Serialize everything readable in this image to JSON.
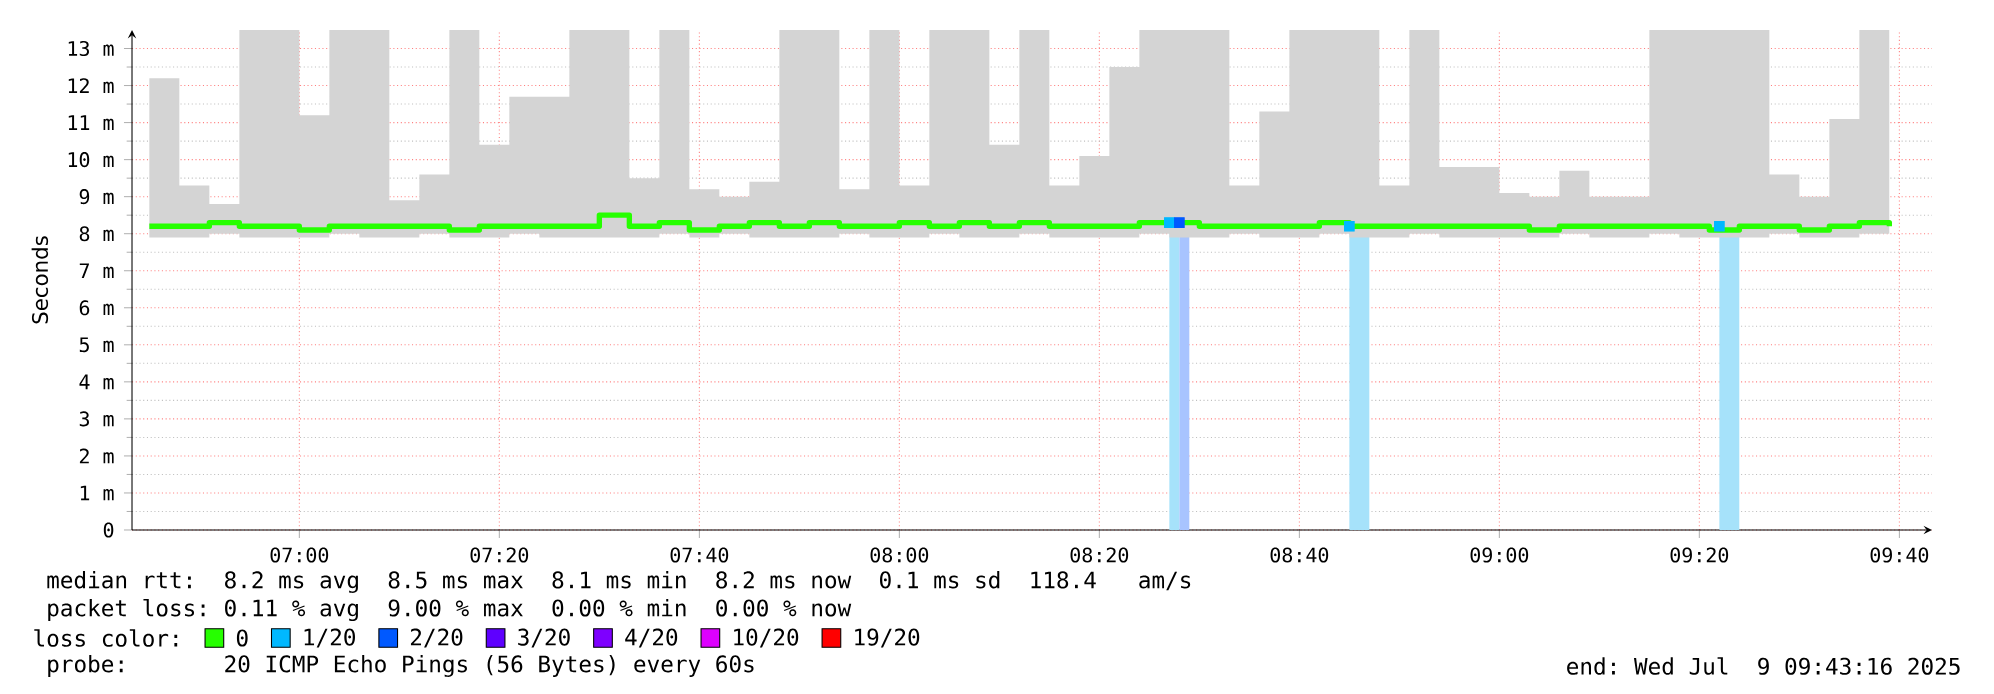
{
  "chart_data": {
    "type": "step",
    "ylabel": "Seconds",
    "xlim": [
      6.7211,
      9.7211
    ],
    "ylim": [
      0,
      13.5
    ],
    "xticks": [
      {
        "value": 7,
        "label": "07:00"
      },
      {
        "value": 7.3333,
        "label": "07:20"
      },
      {
        "value": 7.6667,
        "label": "07:40"
      },
      {
        "value": 8,
        "label": "08:00"
      },
      {
        "value": 8.3333,
        "label": "08:20"
      },
      {
        "value": 8.6667,
        "label": "08:40"
      },
      {
        "value": 9,
        "label": "09:00"
      },
      {
        "value": 9.3333,
        "label": "09:20"
      },
      {
        "value": 9.6667,
        "label": "09:40"
      }
    ],
    "yticks": [
      0,
      {
        "value": 1,
        "label": "1 m"
      },
      {
        "value": 2,
        "label": "2 m"
      },
      {
        "value": 3,
        "label": "3 m"
      },
      {
        "value": 4,
        "label": "4 m"
      },
      {
        "value": 5,
        "label": "5 m"
      },
      {
        "value": 6,
        "label": "6 m"
      },
      {
        "value": 7,
        "label": "7 m"
      },
      {
        "value": 8,
        "label": "8 m"
      },
      {
        "value": 9,
        "label": "9 m"
      },
      {
        "value": 10,
        "label": "10 m"
      },
      {
        "value": 11,
        "label": "11 m"
      },
      {
        "value": 12,
        "label": "12 m"
      },
      {
        "value": 13,
        "label": "13 m"
      }
    ],
    "grid": true,
    "legend": "bottom",
    "legend_title": "loss color:",
    "series": [
      {
        "name": "0",
        "color": "#26ff00",
        "x": [
          6.75,
          6.8,
          6.85,
          6.9,
          6.95,
          7.0,
          7.05,
          7.1,
          7.15,
          7.2,
          7.25,
          7.3,
          7.35,
          7.4,
          7.45,
          7.5,
          7.55,
          7.6,
          7.65,
          7.7,
          7.75,
          7.8,
          7.85,
          7.9,
          7.95,
          8.0,
          8.05,
          8.1,
          8.15,
          8.2,
          8.25,
          8.3,
          8.35,
          8.4,
          8.45,
          8.5,
          8.55,
          8.6,
          8.65,
          8.7,
          8.75,
          8.8,
          8.85,
          8.9,
          8.95,
          9.0,
          9.05,
          9.1,
          9.15,
          9.2,
          9.25,
          9.3,
          9.35,
          9.4,
          9.45,
          9.5,
          9.55,
          9.6,
          9.65
        ],
        "values": [
          8.2,
          8.2,
          8.3,
          8.2,
          8.2,
          8.1,
          8.2,
          8.2,
          8.2,
          8.2,
          8.1,
          8.2,
          8.2,
          8.2,
          8.2,
          8.5,
          8.2,
          8.3,
          8.1,
          8.2,
          8.3,
          8.2,
          8.3,
          8.2,
          8.2,
          8.3,
          8.2,
          8.3,
          8.2,
          8.3,
          8.2,
          8.2,
          8.2,
          8.3,
          8.3,
          8.2,
          8.2,
          8.2,
          8.2,
          8.3,
          8.2,
          8.2,
          8.2,
          8.2,
          8.2,
          8.2,
          8.1,
          8.2,
          8.2,
          8.2,
          8.2,
          8.2,
          8.1,
          8.2,
          8.2,
          8.1,
          8.2,
          8.3,
          8.2
        ],
        "lower": [
          7.9,
          7.9,
          8.0,
          7.9,
          7.9,
          7.9,
          8.0,
          7.9,
          7.9,
          8.0,
          7.9,
          7.9,
          8.0,
          7.9,
          7.9,
          7.9,
          7.9,
          8.0,
          7.9,
          8.0,
          7.9,
          7.9,
          7.9,
          8.0,
          7.9,
          7.9,
          8.0,
          7.9,
          7.9,
          8.0,
          7.9,
          7.9,
          7.9,
          8.0,
          7.9,
          7.9,
          8.0,
          7.9,
          7.9,
          8.0,
          7.9,
          7.9,
          8.0,
          7.9,
          7.9,
          7.9,
          7.9,
          8.0,
          7.9,
          7.9,
          8.0,
          7.9,
          7.9,
          7.9,
          8.0,
          7.9,
          7.9,
          8.0,
          7.9
        ],
        "upper": [
          12.2,
          9.3,
          8.8,
          13.5,
          13.5,
          11.2,
          13.5,
          13.5,
          8.9,
          9.6,
          13.5,
          10.4,
          11.7,
          11.7,
          13.5,
          13.5,
          9.5,
          13.5,
          9.2,
          9.0,
          9.4,
          13.5,
          13.5,
          9.2,
          13.5,
          9.3,
          13.5,
          13.5,
          10.4,
          13.5,
          9.3,
          10.1,
          12.5,
          13.5,
          13.5,
          13.5,
          9.3,
          11.3,
          13.5,
          13.5,
          13.5,
          9.3,
          13.5,
          9.8,
          9.8,
          9.1,
          9.0,
          9.7,
          9.0,
          9.0,
          13.5,
          13.5,
          13.5,
          13.5,
          9.6,
          9.0,
          11.1,
          13.5,
          13.5
        ]
      },
      {
        "name": "1/20",
        "color": "#00b8ff",
        "type": "scatter",
        "marker": "square",
        "x": [
          8.45,
          8.75,
          9.3667
        ],
        "values": [
          8.3,
          8.2,
          8.2
        ]
      },
      {
        "name": "2/20",
        "color": "#0059ff",
        "type": "scatter",
        "marker": "square",
        "x": [
          8.4667
        ],
        "values": [
          8.3
        ]
      },
      {
        "name": "3/20",
        "color": "#5e00ff",
        "type": "scatter",
        "marker": "square"
      },
      {
        "name": "4/20",
        "color": "#7e00ff",
        "type": "scatter",
        "marker": "square"
      },
      {
        "name": "10/20",
        "color": "#dd00ff",
        "type": "scatter",
        "marker": "square"
      },
      {
        "name": "19/20",
        "color": "#ff0000",
        "type": "scatter",
        "marker": "square"
      }
    ],
    "bands": [
      {
        "axis": "x",
        "from": 8.45,
        "to": 8.4667,
        "color": "#a6e2fa"
      },
      {
        "axis": "x",
        "from": 8.4667,
        "to": 8.4833,
        "color": "#a8c4ff"
      },
      {
        "axis": "x",
        "from": 8.75,
        "to": 8.7833,
        "color": "#a6e2fa"
      },
      {
        "axis": "x",
        "from": 9.3667,
        "to": 9.4,
        "color": "#a6e2fa"
      }
    ],
    "annotations": [
      "median rtt:  8.2 ms avg  8.5 ms max  8.1 ms min  8.2 ms now  0.1 ms sd  118.4   am/s",
      "packet loss: 0.11 % avg  9.00 % max  0.00 % min  0.00 % now",
      "probe:       20 ICMP Echo Pings (56 Bytes) every 60s",
      "end: Wed Jul  9 09:43:16 2025"
    ]
  }
}
